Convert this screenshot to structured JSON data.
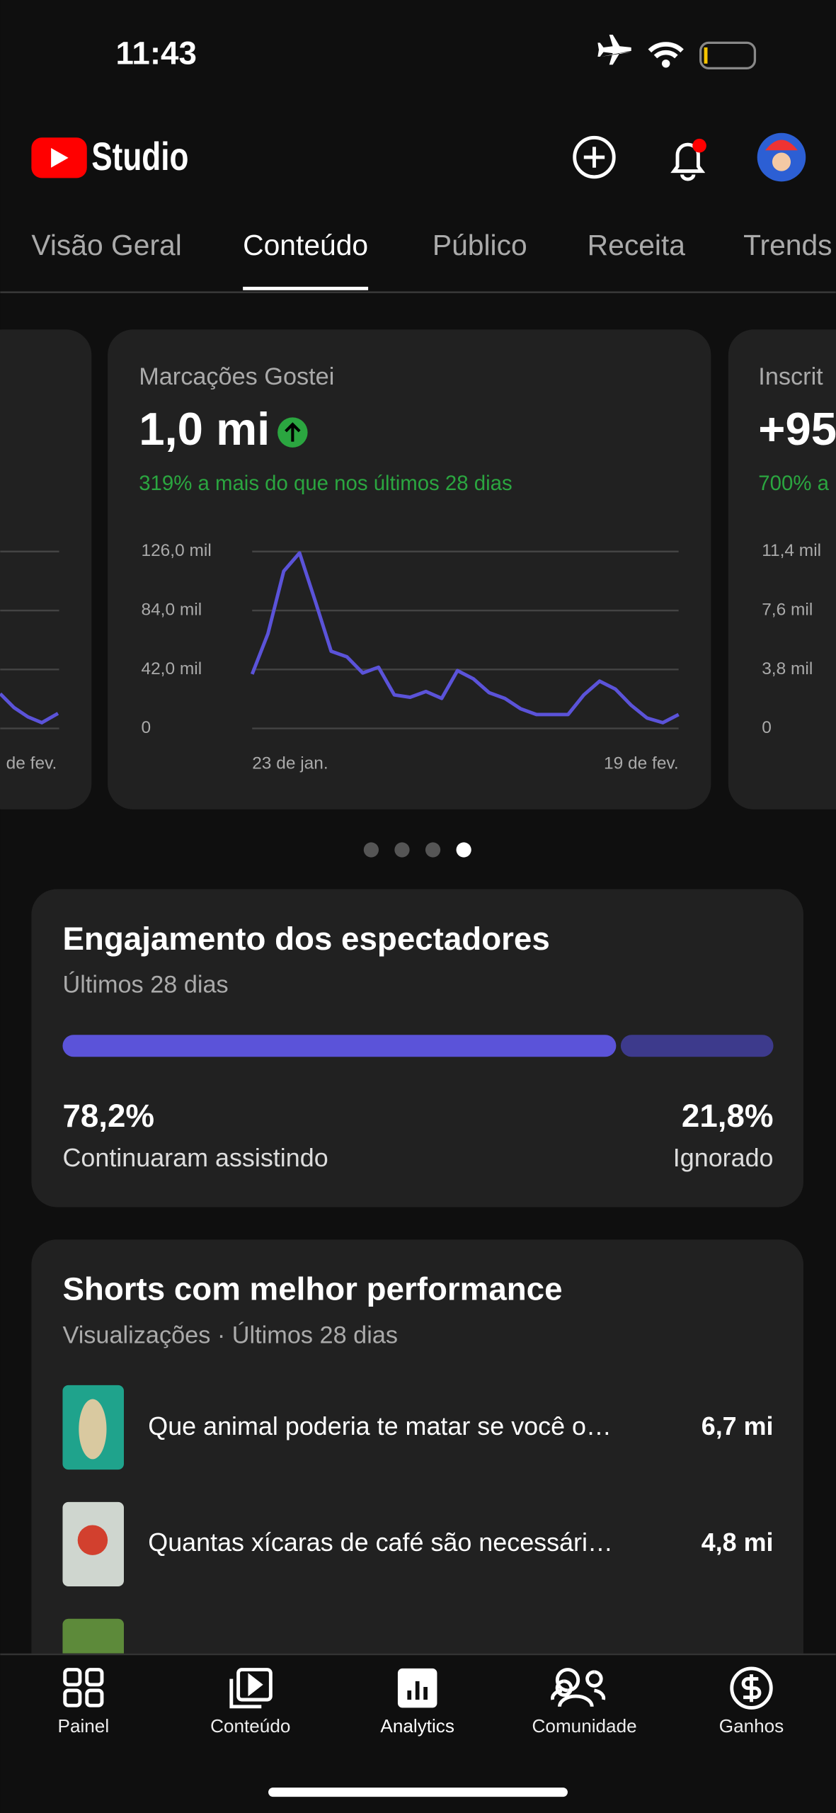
{
  "status_bar": {
    "time": "11:43"
  },
  "header": {
    "logo_text": "Studio"
  },
  "tabs": {
    "items": [
      "Visão Geral",
      "Conteúdo",
      "Público",
      "Receita",
      "Trends"
    ],
    "selected": 1
  },
  "left_card": {
    "x_label": "de fev."
  },
  "likes_card": {
    "title": "Marcações Gostei",
    "value": "1,0 mi",
    "change": "319% a mais do que nos últimos 28 dias",
    "chart_data": {
      "type": "line",
      "color": "#5b53d9",
      "categories": [
        "23 de jan.",
        null,
        null,
        null,
        null,
        null,
        null,
        null,
        null,
        null,
        null,
        null,
        null,
        null,
        null,
        null,
        null,
        null,
        null,
        null,
        null,
        null,
        null,
        null,
        null,
        null,
        null,
        "19 de fev."
      ],
      "values": [
        38700,
        67500,
        112000,
        125000,
        90500,
        55000,
        51000,
        39500,
        43600,
        23900,
        22200,
        26300,
        21400,
        41200,
        35400,
        25500,
        21400,
        14000,
        9900,
        9900,
        9900,
        23900,
        33700,
        28000,
        16500,
        7400,
        4100,
        9900
      ],
      "ylim": [
        0,
        126000
      ],
      "yticks": [
        0,
        {
          "value": 42000,
          "label": "42,0 mil"
        },
        {
          "value": 84000,
          "label": "84,0 mil"
        },
        {
          "value": 126000,
          "label": "126,0 mil"
        }
      ],
      "grid": true
    }
  },
  "right_card": {
    "title": "Inscrit",
    "value": "+95",
    "change": "700% a",
    "yticks": [
      "11,4 mil",
      "7,6 mil",
      "3,8 mil",
      "0"
    ]
  },
  "carousel": {
    "pages": 4,
    "active": 3
  },
  "engagement": {
    "title": "Engajamento dos espectadores",
    "subtitle": "Últimos 28 dias",
    "chart_data": {
      "type": "stacked-bar",
      "categories": [
        "Continuaram assistindo",
        "Ignorado"
      ],
      "values": [
        78.2,
        21.8
      ],
      "value_labels": [
        "78,2%",
        "21,8%"
      ],
      "colors": [
        "#5b53d9",
        "#3d3a8c"
      ],
      "xlim": [
        0,
        100
      ]
    }
  },
  "shorts": {
    "title": "Shorts com melhor performance",
    "subtitle": "Visualizações · Últimos 28 dias",
    "rows": [
      {
        "title": "Que animal poderia te matar se você o…",
        "views": "6,7 mi"
      },
      {
        "title": "Quantas xícaras de café são necessári…",
        "views": "4,8 mi"
      }
    ]
  },
  "nav": {
    "items": [
      "Painel",
      "Conteúdo",
      "Analytics",
      "Comunidade",
      "Ganhos"
    ],
    "active": 2
  }
}
